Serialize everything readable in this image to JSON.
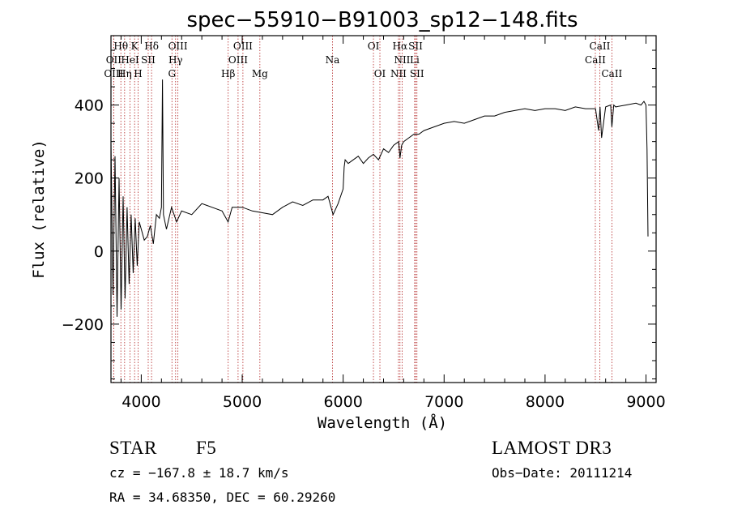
{
  "chart_data": {
    "type": "line",
    "title": "spec−55910−B91003_sp12−148.fits",
    "xlabel": "Wavelength (Å)",
    "ylabel": "Flux (relative)",
    "xlim": [
      3700,
      9100
    ],
    "ylim": [
      -360,
      590
    ],
    "x_ticks": [
      4000,
      5000,
      6000,
      7000,
      8000,
      9000
    ],
    "y_ticks": [
      -200,
      0,
      200,
      400
    ],
    "series": [
      {
        "name": "flux",
        "x": [
          3700,
          3720,
          3740,
          3760,
          3780,
          3800,
          3820,
          3840,
          3860,
          3880,
          3900,
          3920,
          3940,
          3960,
          3980,
          4000,
          4030,
          4060,
          4090,
          4120,
          4150,
          4180,
          4200,
          4210,
          4220,
          4250,
          4300,
          4350,
          4400,
          4500,
          4600,
          4700,
          4800,
          4860,
          4900,
          5000,
          5100,
          5200,
          5300,
          5400,
          5500,
          5600,
          5700,
          5800,
          5850,
          5900,
          5950,
          6000,
          6010,
          6020,
          6050,
          6100,
          6150,
          6200,
          6250,
          6300,
          6350,
          6400,
          6450,
          6500,
          6550,
          6563,
          6580,
          6600,
          6650,
          6700,
          6750,
          6800,
          6900,
          7000,
          7100,
          7200,
          7300,
          7400,
          7500,
          7600,
          7700,
          7800,
          7900,
          8000,
          8100,
          8200,
          8300,
          8400,
          8500,
          8530,
          8545,
          8560,
          8600,
          8650,
          8662,
          8680,
          8700,
          8800,
          8900,
          8950,
          8980,
          9000,
          9010,
          9020
        ],
        "y": [
          300,
          -120,
          260,
          -180,
          200,
          -160,
          150,
          -130,
          120,
          -90,
          100,
          -60,
          90,
          -40,
          80,
          60,
          30,
          40,
          70,
          20,
          100,
          90,
          120,
          470,
          100,
          60,
          120,
          80,
          110,
          100,
          130,
          120,
          110,
          80,
          120,
          120,
          110,
          105,
          100,
          120,
          135,
          125,
          140,
          140,
          150,
          100,
          130,
          170,
          230,
          250,
          240,
          250,
          260,
          240,
          255,
          265,
          250,
          280,
          270,
          290,
          300,
          255,
          290,
          300,
          310,
          320,
          320,
          330,
          340,
          350,
          355,
          350,
          360,
          370,
          370,
          380,
          385,
          390,
          385,
          390,
          390,
          385,
          395,
          390,
          390,
          330,
          395,
          310,
          395,
          400,
          340,
          400,
          395,
          400,
          405,
          400,
          410,
          400,
          280,
          40
        ]
      }
    ],
    "lines": [
      {
        "label": "Hθ",
        "wl": 3798,
        "row": 1
      },
      {
        "label": "OII",
        "wl": 3727,
        "row": 2
      },
      {
        "label": "OIII",
        "wl": 3727,
        "row": 3
      },
      {
        "label": "K",
        "wl": 3934,
        "row": 1
      },
      {
        "label": "HeI",
        "wl": 3889,
        "row": 2
      },
      {
        "label": "Hη",
        "wl": 3835,
        "row": 3
      },
      {
        "label": "SII",
        "wl": 4069,
        "row": 2
      },
      {
        "label": "H",
        "wl": 3969,
        "row": 3
      },
      {
        "label": "Hδ",
        "wl": 4102,
        "row": 1
      },
      {
        "label": "OIII",
        "wl": 4363,
        "row": 1
      },
      {
        "label": "Hγ",
        "wl": 4340,
        "row": 2
      },
      {
        "label": "G",
        "wl": 4304,
        "row": 3
      },
      {
        "label": "OIII",
        "wl": 5007,
        "row": 1
      },
      {
        "label": "OIII",
        "wl": 4959,
        "row": 2
      },
      {
        "label": "Hβ",
        "wl": 4861,
        "row": 3
      },
      {
        "label": "Mg",
        "wl": 5175,
        "row": 3
      },
      {
        "label": "Na",
        "wl": 5894,
        "row": 2
      },
      {
        "label": "OI",
        "wl": 6300,
        "row": 1
      },
      {
        "label": "OI",
        "wl": 6364,
        "row": 3
      },
      {
        "label": "Hα",
        "wl": 6563,
        "row": 1
      },
      {
        "label": "NII",
        "wl": 6584,
        "row": 2
      },
      {
        "label": "NII",
        "wl": 6548,
        "row": 3
      },
      {
        "label": "SII",
        "wl": 6717,
        "row": 1
      },
      {
        "label": "Li",
        "wl": 6708,
        "row": 2
      },
      {
        "label": "SII",
        "wl": 6731,
        "row": 3
      },
      {
        "label": "CaII",
        "wl": 8542,
        "row": 1
      },
      {
        "label": "CaII",
        "wl": 8498,
        "row": 2
      },
      {
        "label": "CaII",
        "wl": 8662,
        "row": 3
      }
    ]
  },
  "info": {
    "object_class": "STAR",
    "subclass": "F5",
    "survey": "LAMOST DR3",
    "cz": "cz = −167.8 ± 18.7 km/s",
    "obs_date": "Obs−Date: 20111214",
    "coords": "RA =  34.68350, DEC =  60.29260"
  },
  "colors": {
    "line_marker": "#b22222",
    "spectrum": "#000000",
    "axes": "#000000"
  }
}
